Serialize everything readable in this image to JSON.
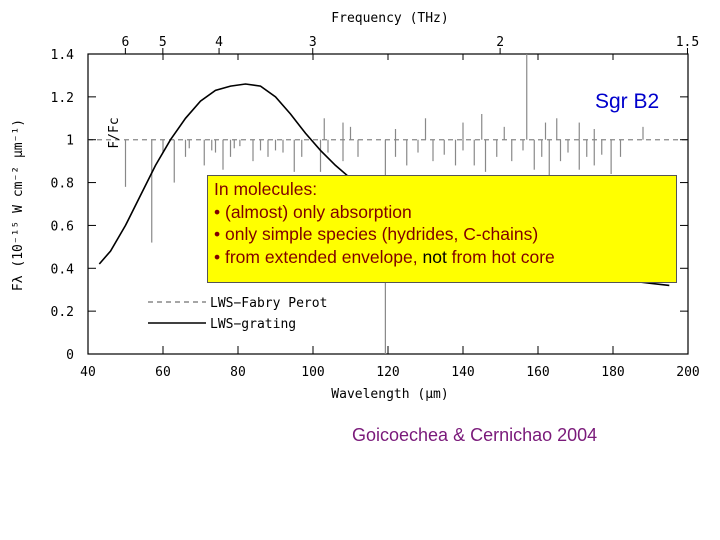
{
  "chart_data": {
    "type": "line",
    "title": "",
    "xlabel": "Wavelength (μm)",
    "ylabel_left": "Fλ (10⁻¹⁵ W cm⁻² μm⁻¹)",
    "ylabel_right": "F/Fc",
    "top_axis_label": "Frequency (THz)",
    "xlim": [
      40,
      200
    ],
    "ylim": [
      0,
      1.4
    ],
    "x_ticks": [
      "40",
      "60",
      "80",
      "100",
      "120",
      "140",
      "160",
      "180",
      "200"
    ],
    "y_ticks": [
      "0",
      "0.2",
      "0.4",
      "0.6",
      "0.8",
      "1",
      "1.2",
      "1.4"
    ],
    "top_ticks": [
      {
        "label": "6",
        "thz": 6
      },
      {
        "label": "5",
        "thz": 5
      },
      {
        "label": "4",
        "thz": 4
      },
      {
        "label": "3",
        "thz": 3
      },
      {
        "label": "2",
        "thz": 2
      },
      {
        "label": "1.5",
        "thz": 1.5
      }
    ],
    "continuum_level": 1.0,
    "series": [
      {
        "name": "LWS−grating",
        "style": "solid",
        "color": "#000000",
        "x": [
          43,
          46,
          50,
          54,
          58,
          62,
          66,
          70,
          74,
          78,
          82,
          86,
          90,
          94,
          98,
          102,
          106,
          110,
          114,
          118,
          122,
          126,
          130,
          135,
          140,
          145,
          150,
          155,
          160,
          165,
          170,
          175,
          180,
          185,
          190,
          195
        ],
        "y": [
          0.42,
          0.48,
          0.6,
          0.74,
          0.88,
          1.0,
          1.1,
          1.18,
          1.23,
          1.25,
          1.26,
          1.25,
          1.2,
          1.12,
          1.03,
          0.95,
          0.88,
          0.82,
          0.76,
          0.72,
          0.68,
          0.65,
          0.62,
          0.58,
          0.55,
          0.52,
          0.5,
          0.47,
          0.45,
          0.43,
          0.4,
          0.37,
          0.35,
          0.34,
          0.33,
          0.32
        ]
      },
      {
        "name": "LWS−Fabry Perot",
        "style": "dashed",
        "color": "#888888",
        "lines": [
          {
            "x": 50,
            "y": 0.78
          },
          {
            "x": 57,
            "y": 0.52
          },
          {
            "x": 60,
            "y": 0.94
          },
          {
            "x": 63,
            "y": 0.8
          },
          {
            "x": 66,
            "y": 0.92
          },
          {
            "x": 67,
            "y": 0.96
          },
          {
            "x": 71,
            "y": 0.88
          },
          {
            "x": 73,
            "y": 0.95
          },
          {
            "x": 74,
            "y": 0.94
          },
          {
            "x": 76,
            "y": 0.86
          },
          {
            "x": 78,
            "y": 0.92
          },
          {
            "x": 79,
            "y": 0.96
          },
          {
            "x": 80.5,
            "y": 0.97
          },
          {
            "x": 84,
            "y": 0.9
          },
          {
            "x": 86,
            "y": 0.95
          },
          {
            "x": 88,
            "y": 0.92
          },
          {
            "x": 90,
            "y": 0.95
          },
          {
            "x": 92,
            "y": 0.94
          },
          {
            "x": 95,
            "y": 0.85
          },
          {
            "x": 97,
            "y": 0.92
          },
          {
            "x": 102,
            "y": 0.85
          },
          {
            "x": 104,
            "y": 0.94
          },
          {
            "x": 108,
            "y": 0.9
          },
          {
            "x": 112,
            "y": 0.92
          },
          {
            "x": 119.3,
            "y": 0.0
          },
          {
            "x": 122,
            "y": 0.92
          },
          {
            "x": 125,
            "y": 0.88
          },
          {
            "x": 128,
            "y": 0.94
          },
          {
            "x": 132,
            "y": 0.9
          },
          {
            "x": 135,
            "y": 0.93
          },
          {
            "x": 138,
            "y": 0.88
          },
          {
            "x": 140,
            "y": 0.95
          },
          {
            "x": 143,
            "y": 0.88
          },
          {
            "x": 146,
            "y": 0.85
          },
          {
            "x": 149,
            "y": 0.92
          },
          {
            "x": 153,
            "y": 0.9
          },
          {
            "x": 156,
            "y": 0.95
          },
          {
            "x": 159,
            "y": 0.86
          },
          {
            "x": 161,
            "y": 0.92
          },
          {
            "x": 163,
            "y": 0.82
          },
          {
            "x": 166,
            "y": 0.9
          },
          {
            "x": 168,
            "y": 0.94
          },
          {
            "x": 171,
            "y": 0.86
          },
          {
            "x": 173,
            "y": 0.92
          },
          {
            "x": 175,
            "y": 0.88
          },
          {
            "x": 177,
            "y": 0.93
          },
          {
            "x": 179.5,
            "y": 0.84
          },
          {
            "x": 182,
            "y": 0.92
          }
        ],
        "emission": [
          {
            "x": 103,
            "y": 1.1
          },
          {
            "x": 108,
            "y": 1.08
          },
          {
            "x": 110,
            "y": 1.06
          },
          {
            "x": 122,
            "y": 1.05
          },
          {
            "x": 130,
            "y": 1.1
          },
          {
            "x": 140,
            "y": 1.08
          },
          {
            "x": 145,
            "y": 1.12
          },
          {
            "x": 151,
            "y": 1.06
          },
          {
            "x": 157,
            "y": 1.4
          },
          {
            "x": 162,
            "y": 1.08
          },
          {
            "x": 165,
            "y": 1.1
          },
          {
            "x": 171,
            "y": 1.08
          },
          {
            "x": 175,
            "y": 1.05
          },
          {
            "x": 188,
            "y": 1.06
          }
        ]
      }
    ],
    "legend": [
      {
        "label": "LWS−Fabry Perot",
        "style": "dashed"
      },
      {
        "label": "LWS−grating",
        "style": "solid"
      }
    ],
    "legend_position": "lower-left"
  },
  "annotations": {
    "object_label": "Sgr B2",
    "callout_lines": [
      "In molecules:",
      "• (almost) only absorption",
      "• only simple species (hydrides, C-chains)"
    ],
    "callout_last_prefix": "• from extended envelope, ",
    "callout_last_not": "not",
    "callout_last_suffix": " from hot core",
    "credit": "Goicoechea & Cernichao 2004"
  },
  "colors": {
    "callout_bg": "#ffff00",
    "callout_text": "#800000",
    "object_label": "#0000cc",
    "credit": "#7a1a7a",
    "fp_line": "#888888"
  }
}
